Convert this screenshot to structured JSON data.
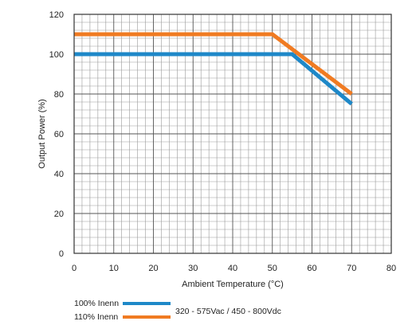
{
  "chart_data": {
    "type": "line",
    "title": "",
    "xlabel": "Ambient Temperature (°C)",
    "ylabel": "Output Power (%)",
    "xlim": [
      0,
      80
    ],
    "ylim": [
      0,
      120
    ],
    "x_ticks": [
      "0",
      "10",
      "20",
      "30",
      "40",
      "50",
      "60",
      "70",
      "80"
    ],
    "y_ticks": [
      "0",
      "20",
      "40",
      "60",
      "80",
      "100",
      "120"
    ],
    "grid": true,
    "series": [
      {
        "name": "110% Inenn",
        "color": "#f07b22",
        "x": [
          0,
          50,
          70
        ],
        "y": [
          110,
          110,
          80
        ]
      },
      {
        "name": "100% Inenn",
        "color": "#1e88c8",
        "x": [
          0,
          55,
          70
        ],
        "y": [
          100,
          100,
          75
        ]
      }
    ],
    "legend": {
      "placement": "bottom-left",
      "entries": [
        {
          "label": "100% Inenn",
          "color": "#1e88c8"
        },
        {
          "label": "110% Inenn",
          "color": "#f07b22"
        }
      ],
      "condition": "320 - 575Vac / 450 - 800Vdc"
    }
  }
}
